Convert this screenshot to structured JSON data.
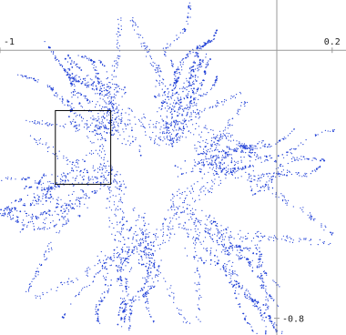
{
  "chart_data": {
    "type": "scatter",
    "title": "",
    "xlabel": "",
    "ylabel": "",
    "xlim": [
      -1.0,
      0.25
    ],
    "ylim": [
      -0.85,
      0.15
    ],
    "x_ticks": [
      {
        "value": -1,
        "label": "-1"
      },
      {
        "value": 0.2,
        "label": "0.2"
      }
    ],
    "y_ticks": [
      {
        "value": -0.8,
        "label": "-0.8"
      }
    ],
    "grid": false,
    "legend": "none",
    "point_color": "#1f3fd6",
    "inset_box": {
      "x_range": [
        -0.8,
        -0.6
      ],
      "y_range": [
        -0.4,
        -0.18
      ]
    },
    "shape": "three-armed fractal attractor with serrated fern-like fronds, dense blue point cloud surrounding a white star-shaped interior",
    "axis_color": "#999999"
  }
}
